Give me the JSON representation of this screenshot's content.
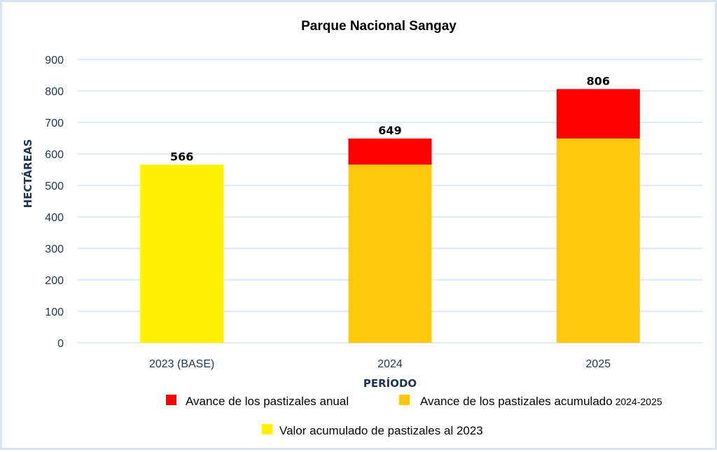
{
  "chart_data": {
    "type": "bar",
    "stacked": true,
    "title": "Parque Nacional Sangay",
    "xlabel": "PERÍODO",
    "ylabel": "HECTÁREAS",
    "ylim": [
      0,
      900
    ],
    "yticks": [
      "0",
      "100",
      "200",
      "300",
      "400",
      "500",
      "600",
      "700",
      "800",
      "900"
    ],
    "ytick_values": [
      0,
      100,
      200,
      300,
      400,
      500,
      600,
      700,
      800,
      900
    ],
    "grid": true,
    "categories": [
      "2023 (BASE)",
      "2024",
      "2025"
    ],
    "series": [
      {
        "name": "Valor acumulado de pastizales al 2023",
        "color": "#FFF200",
        "values": [
          566,
          0,
          0
        ]
      },
      {
        "name": "Avance de los pastizales acumulado",
        "name_suffix": "2024-2025",
        "color": "#FFC80A",
        "values": [
          0,
          566,
          649
        ]
      },
      {
        "name": "Avance de los pastizales anual",
        "color": "#FF0000",
        "values": [
          0,
          83,
          157
        ]
      }
    ],
    "totals": [
      566,
      649,
      806
    ],
    "total_labels": [
      "566",
      "649",
      "806"
    ],
    "legend_position": "bottom"
  },
  "colors": {
    "gridline": "#d6e4f2",
    "axis_text": "#1f3550",
    "border": "#d6e4f2"
  }
}
